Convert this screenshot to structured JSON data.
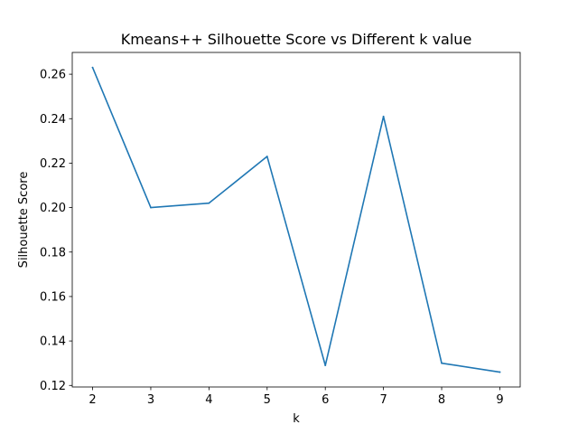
{
  "chart_data": {
    "type": "line",
    "title": "Kmeans++ Silhouette Score vs Different k value",
    "xlabel": "k",
    "ylabel": "Silhouette Score",
    "x": [
      2,
      3,
      4,
      5,
      6,
      7,
      8,
      9
    ],
    "x_ticks": [
      2,
      3,
      4,
      5,
      6,
      7,
      8,
      9
    ],
    "y_ticks": [
      "0.12",
      "0.14",
      "0.16",
      "0.18",
      "0.20",
      "0.22",
      "0.24",
      "0.26"
    ],
    "xlim": [
      1.65,
      9.35
    ],
    "ylim": [
      0.1193,
      0.2698
    ],
    "grid": false,
    "series": [
      {
        "color": "#1f77b4",
        "values": [
          0.263,
          0.2,
          0.202,
          0.223,
          0.129,
          0.241,
          0.13,
          0.126
        ]
      }
    ]
  }
}
